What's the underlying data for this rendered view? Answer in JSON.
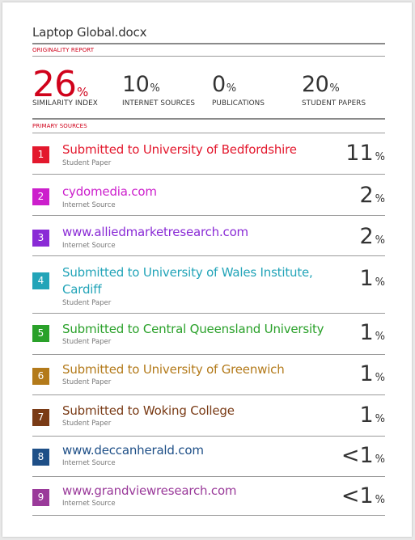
{
  "document": {
    "title": "Laptop Global.docx"
  },
  "originality_report": {
    "label": "ORIGINALITY REPORT",
    "metrics": [
      {
        "value": "26",
        "unit": "%",
        "label": "SIMILARITY INDEX"
      },
      {
        "value": "10",
        "unit": "%",
        "label": "INTERNET SOURCES"
      },
      {
        "value": "0",
        "unit": "%",
        "label": "PUBLICATIONS"
      },
      {
        "value": "20",
        "unit": "%",
        "label": "STUDENT PAPERS"
      }
    ]
  },
  "primary_sources": {
    "label": "PRIMARY SOURCES",
    "sources": [
      {
        "rank": "1",
        "name": "Submitted to University of Bedfordshire",
        "type": "Student Paper",
        "percent": "11",
        "unit": "%",
        "color": "#e3182d"
      },
      {
        "rank": "2",
        "name": "cydomedia.com",
        "type": "Internet Source",
        "percent": "2",
        "unit": "%",
        "color": "#cc1fcc"
      },
      {
        "rank": "3",
        "name": "www.alliedmarketresearch.com",
        "type": "Internet Source",
        "percent": "2",
        "unit": "%",
        "color": "#8a2bd6"
      },
      {
        "rank": "4",
        "name": "Submitted to University of Wales Institute, Cardiff",
        "type": "Student Paper",
        "percent": "1",
        "unit": "%",
        "color": "#22a4b8"
      },
      {
        "rank": "5",
        "name": "Submitted to Central Queensland University",
        "type": "Student Paper",
        "percent": "1",
        "unit": "%",
        "color": "#2aa12a"
      },
      {
        "rank": "6",
        "name": "Submitted to University of Greenwich",
        "type": "Student Paper",
        "percent": "1",
        "unit": "%",
        "color": "#b37a1a"
      },
      {
        "rank": "7",
        "name": "Submitted to Woking College",
        "type": "Student Paper",
        "percent": "1",
        "unit": "%",
        "color": "#7a3b16"
      },
      {
        "rank": "8",
        "name": "www.deccanherald.com",
        "type": "Internet Source",
        "percent": "<1",
        "unit": "%",
        "color": "#1e4f87"
      },
      {
        "rank": "9",
        "name": "www.grandviewresearch.com",
        "type": "Internet Source",
        "percent": "<1",
        "unit": "%",
        "color": "#9a3a9a"
      }
    ]
  }
}
